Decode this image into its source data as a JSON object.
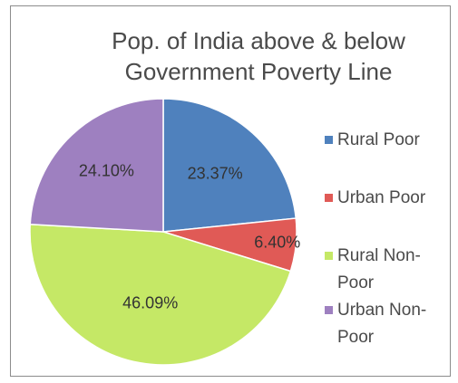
{
  "chart_data": {
    "type": "pie",
    "title_lines": [
      "Pop. of India above & below",
      "Government Poverty Line"
    ],
    "slices": [
      {
        "name": "Rural Poor",
        "value": 23.37,
        "label": "23.37%",
        "color": "#4f81bd"
      },
      {
        "name": "Urban Poor",
        "value": 6.4,
        "label": "6.40%",
        "color": "#e05a56"
      },
      {
        "name": "Rural Non-Poor",
        "value": 46.09,
        "label": "46.09%",
        "color": "#c5e866"
      },
      {
        "name": "Urban Non-Poor",
        "value": 24.1,
        "label": "24.10%",
        "color": "#9e80c0"
      }
    ],
    "legend": {
      "placement": "right",
      "entries": [
        {
          "lines": [
            "Rural Poor"
          ]
        },
        {
          "lines": [
            "Urban Poor"
          ]
        },
        {
          "lines": [
            "Rural Non-",
            "Poor"
          ]
        },
        {
          "lines": [
            "Urban Non-",
            "Poor"
          ]
        }
      ]
    }
  }
}
